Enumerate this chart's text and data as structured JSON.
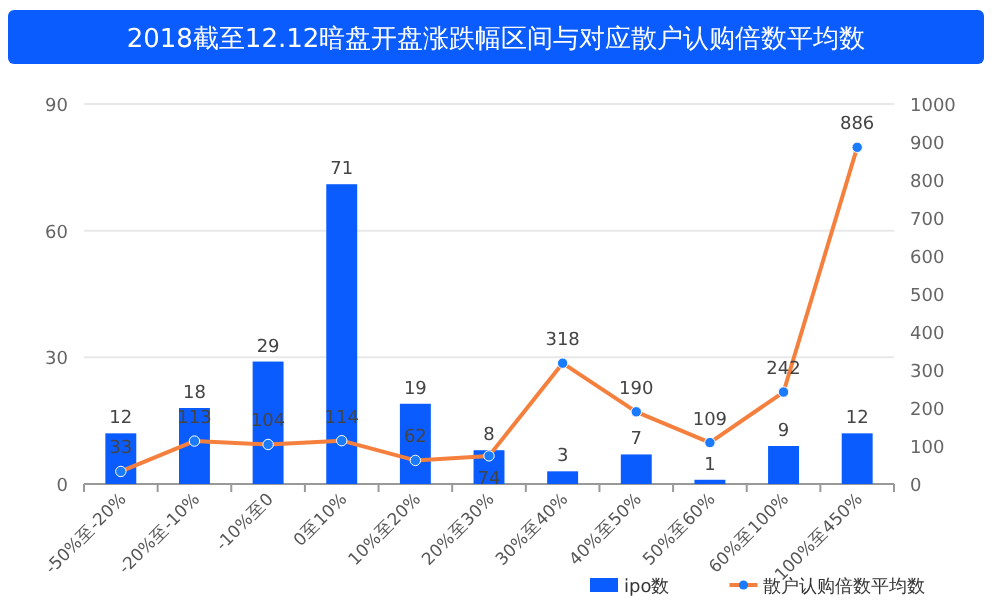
{
  "chart_data": {
    "type": "bar",
    "title": "2018截至12.12暗盘开盘涨跌幅区间与对应散户认购倍数平均数",
    "categories": [
      "-50%至-20%",
      "-20%至-10%",
      "-10%至0",
      "0至10%",
      "10%至20%",
      "20%至30%",
      "30%至40%",
      "40%至50%",
      "50%至60%",
      "60%至100%",
      "100%至450%"
    ],
    "series": [
      {
        "name": "ipo数",
        "color": "#0a5cff",
        "values": [
          12,
          18,
          29,
          71,
          19,
          8,
          3,
          7,
          1,
          9,
          12
        ]
      },
      {
        "name": "散户认购倍数平均数",
        "type": "line",
        "axis": "y2",
        "color": "#f5803e",
        "marker": "circle",
        "values": [
          33,
          113,
          104,
          114,
          62,
          74,
          318,
          190,
          109,
          242,
          886
        ]
      }
    ],
    "ylim": [
      0,
      90
    ],
    "yticks": [
      0,
      30,
      60,
      90
    ],
    "y2lim": [
      0,
      1000
    ],
    "y2ticks": [
      0,
      100,
      200,
      300,
      400,
      500,
      600,
      700,
      800,
      900,
      1000
    ],
    "grid": "y",
    "legend": "bottom",
    "data_labels": true
  }
}
